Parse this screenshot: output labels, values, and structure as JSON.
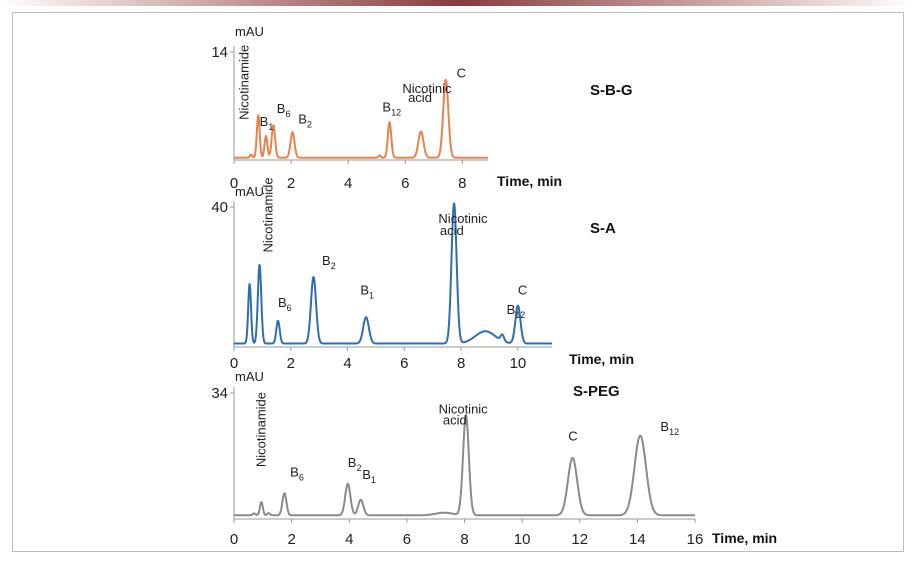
{
  "chart_data": [
    {
      "type": "line",
      "title": "S-B-G",
      "xlabel": "Time, min",
      "ylabel": "mAU",
      "xlim": [
        0,
        8.9
      ],
      "ylim": [
        0,
        14
      ],
      "xticks": [
        "0",
        "2",
        "4",
        "6",
        "8"
      ],
      "yticks": [
        "14"
      ],
      "color": "#e8834c",
      "baseline": 0.3,
      "series": [
        {
          "peaks": [
            {
              "t": 0.6,
              "h": 0.4,
              "w": 0.04
            },
            {
              "t": 0.85,
              "h": 5.5,
              "w": 0.05
            },
            {
              "t": 1.12,
              "h": 2.8,
              "w": 0.05
            },
            {
              "t": 1.38,
              "h": 4.2,
              "w": 0.06
            },
            {
              "t": 2.05,
              "h": 3.3,
              "w": 0.07
            },
            {
              "t": 5.1,
              "h": 0.3,
              "w": 0.04
            },
            {
              "t": 5.45,
              "h": 4.6,
              "w": 0.06
            },
            {
              "t": 6.55,
              "h": 3.4,
              "w": 0.09
            },
            {
              "t": 7.42,
              "h": 10.1,
              "w": 0.09
            }
          ]
        }
      ],
      "peak_labels": [
        {
          "text": "Nicotinamide",
          "t": 0.5,
          "y": 5.2,
          "rotate": true
        },
        {
          "text": "B",
          "sub": "1",
          "t": 0.9,
          "y": 4.4
        },
        {
          "text": "B",
          "sub": "6",
          "t": 1.5,
          "y": 6.1
        },
        {
          "text": "B",
          "sub": "2",
          "t": 2.25,
          "y": 4.7
        },
        {
          "text": "B",
          "sub": "12",
          "t": 5.2,
          "y": 6.3
        },
        {
          "text": "Nicotinic",
          "t": 5.9,
          "y": 8.7
        },
        {
          "text": "acid",
          "t": 6.1,
          "y": 7.5
        },
        {
          "text": "C",
          "t": 7.8,
          "y": 10.7
        }
      ]
    },
    {
      "type": "line",
      "title": "S-A",
      "xlabel": "Time, min",
      "ylabel": "mAU",
      "xlim": [
        0,
        11.2
      ],
      "ylim": [
        0,
        40
      ],
      "xticks": [
        "0",
        "2",
        "4",
        "6",
        "8",
        "10"
      ],
      "yticks": [
        "40"
      ],
      "color": "#2f6db1",
      "baseline": 1,
      "series": [
        {
          "peaks": [
            {
              "t": 0.55,
              "h": 17,
              "w": 0.05
            },
            {
              "t": 0.9,
              "h": 22.5,
              "w": 0.06
            },
            {
              "t": 1.55,
              "h": 6.5,
              "w": 0.06
            },
            {
              "t": 2.8,
              "h": 19,
              "w": 0.09
            },
            {
              "t": 4.65,
              "h": 7.5,
              "w": 0.1
            },
            {
              "t": 7.75,
              "h": 40,
              "w": 0.09
            },
            {
              "t": 8.85,
              "h": 3.5,
              "w": 0.35
            },
            {
              "t": 9.45,
              "h": 1.8,
              "w": 0.06
            },
            {
              "t": 10,
              "h": 10.8,
              "w": 0.09
            }
          ]
        }
      ],
      "peak_labels": [
        {
          "text": "Nicotinamide",
          "t": 1.35,
          "y": 27,
          "rotate": true
        },
        {
          "text": "B",
          "sub": "6",
          "t": 1.55,
          "y": 11.5
        },
        {
          "text": "B",
          "sub": "2",
          "t": 3.1,
          "y": 23.5
        },
        {
          "text": "B",
          "sub": "1",
          "t": 4.45,
          "y": 15
        },
        {
          "text": "Nicotinic",
          "t": 7.2,
          "y": 35.5
        },
        {
          "text": "acid",
          "t": 7.25,
          "y": 32
        },
        {
          "text": "B",
          "sub": "12",
          "t": 9.6,
          "y": 9.5
        },
        {
          "text": "C",
          "t": 10,
          "y": 15
        }
      ]
    },
    {
      "type": "line",
      "title": "S-PEG",
      "xlabel": "Time, min",
      "ylabel": "mAU",
      "xlim": [
        0,
        16
      ],
      "ylim": [
        0,
        34
      ],
      "xticks": [
        "0",
        "2",
        "4",
        "6",
        "8",
        "10",
        "12",
        "14",
        "16"
      ],
      "yticks": [
        "34"
      ],
      "color": "#8a8a8a",
      "baseline": 1,
      "series": [
        {
          "peaks": [
            {
              "t": 0.7,
              "h": 0.5,
              "w": 0.05
            },
            {
              "t": 0.95,
              "h": 3.6,
              "w": 0.05
            },
            {
              "t": 1.2,
              "h": 0.6,
              "w": 0.05
            },
            {
              "t": 1.75,
              "h": 6,
              "w": 0.07
            },
            {
              "t": 3.95,
              "h": 8.5,
              "w": 0.09
            },
            {
              "t": 4.4,
              "h": 4.2,
              "w": 0.09
            },
            {
              "t": 7.3,
              "h": 0.7,
              "w": 0.3
            },
            {
              "t": 8.05,
              "h": 27,
              "w": 0.1
            },
            {
              "t": 11.75,
              "h": 15.5,
              "w": 0.16
            },
            {
              "t": 14.1,
              "h": 21.5,
              "w": 0.2
            }
          ]
        }
      ],
      "peak_labels": [
        {
          "text": "Nicotinamide",
          "t": 1.1,
          "y": 14,
          "rotate": true
        },
        {
          "text": "B",
          "sub": "6",
          "t": 1.95,
          "y": 11.5
        },
        {
          "text": "B",
          "sub": "2",
          "t": 3.95,
          "y": 14
        },
        {
          "text": "B",
          "sub": "1",
          "t": 4.45,
          "y": 10.8
        },
        {
          "text": "Nicotinic",
          "t": 7.1,
          "y": 28.5
        },
        {
          "text": "acid",
          "t": 7.25,
          "y": 25.5
        },
        {
          "text": "C",
          "t": 11.6,
          "y": 21.2
        },
        {
          "text": "B",
          "sub": "12",
          "t": 14.8,
          "y": 23.8
        }
      ]
    }
  ]
}
